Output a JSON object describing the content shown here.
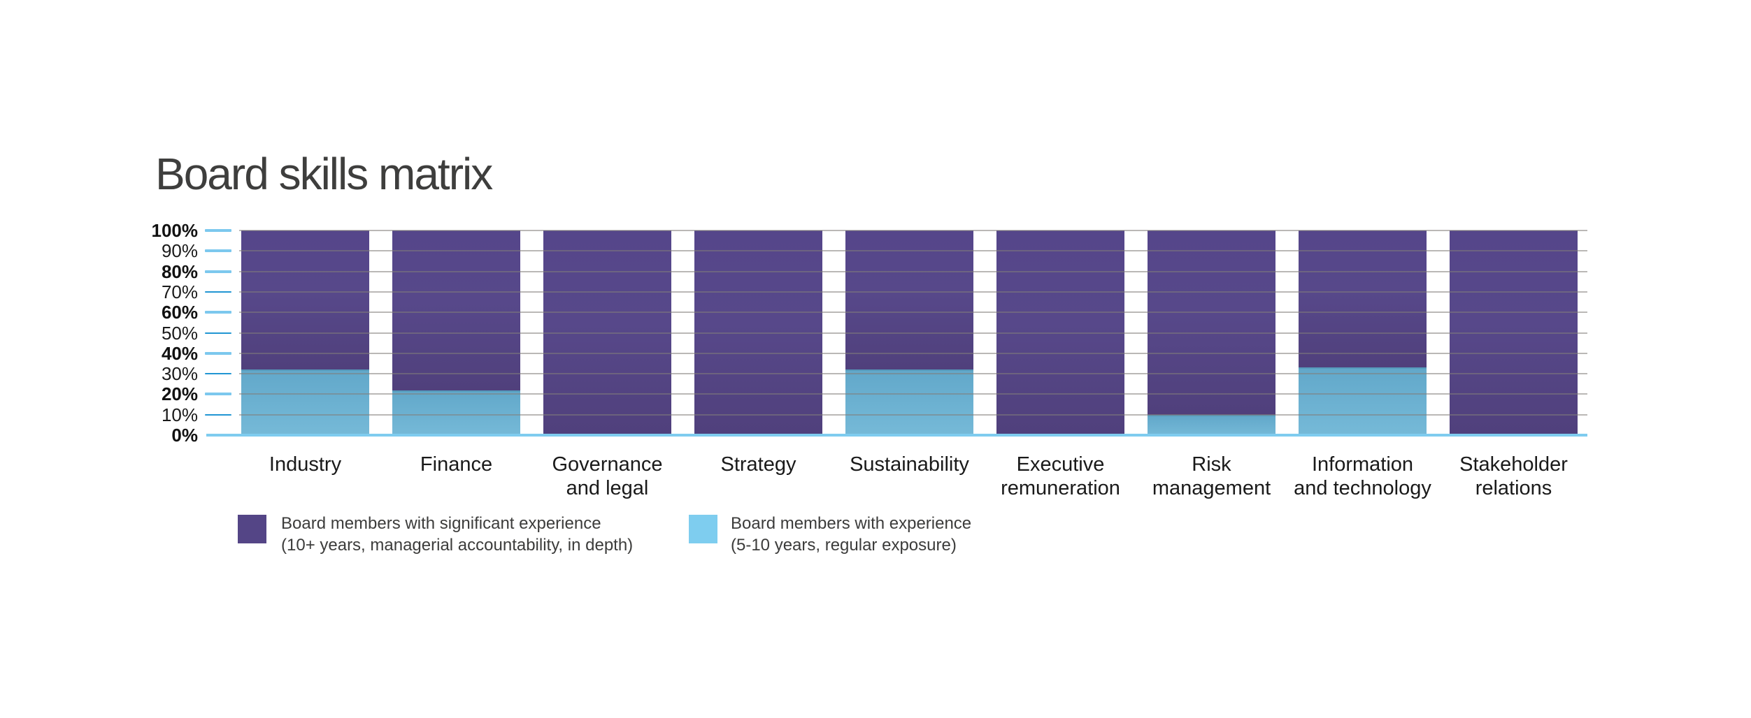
{
  "title": "Board skills matrix",
  "chart_data": {
    "type": "bar",
    "stacked": true,
    "title": "Board skills matrix",
    "categories": [
      "Industry",
      "Finance",
      "Governance and legal",
      "Strategy",
      "Sustainability",
      "Executive remuneration",
      "Risk management",
      "Information and technology",
      "Stakeholder relations"
    ],
    "category_label_lines": [
      [
        "Industry"
      ],
      [
        "Finance"
      ],
      [
        "Governance",
        "and legal"
      ],
      [
        "Strategy"
      ],
      [
        "Sustainability"
      ],
      [
        "Executive",
        "remuneration"
      ],
      [
        "Risk",
        "management"
      ],
      [
        "Information",
        "and technology"
      ],
      [
        "Stakeholder",
        "relations"
      ]
    ],
    "series": [
      {
        "name": "Board members with significant experience (10+ years, managerial accountability, in depth)",
        "swatch_color": "#544586",
        "bar_color_top": "#55468a",
        "bar_color_bottom": "#50407c",
        "values": [
          68,
          78,
          100,
          100,
          68,
          100,
          90,
          67,
          100
        ]
      },
      {
        "name": "Board members with experience (5-10 years, regular exposure)",
        "swatch_color": "#7ecdef",
        "bar_color_top": "#62a8ca",
        "bar_color_bottom": "#76bad8",
        "values": [
          32,
          22,
          0,
          0,
          32,
          0,
          10,
          33,
          0
        ]
      }
    ],
    "ylim": [
      0,
      100
    ],
    "ytick_values": [
      100,
      90,
      80,
      70,
      60,
      50,
      40,
      30,
      20,
      10,
      0
    ],
    "ytick_labels": [
      "100%",
      "90%",
      "80%",
      "70%",
      "60%",
      "50%",
      "40%",
      "30%",
      "20%",
      "10%",
      "0%"
    ],
    "bold_ytick_values": [
      100,
      80,
      60,
      40,
      20,
      0
    ],
    "dark_tick_values": [
      70,
      50,
      30,
      10
    ],
    "grid": true,
    "legend_position": "bottom"
  },
  "legend": {
    "items": [
      {
        "line1": "Board members with significant experience",
        "line2": "(10+ years, managerial accountability, in depth)",
        "color": "#544586"
      },
      {
        "line1": "Board members with experience",
        "line2": "(5-10 years, regular exposure)",
        "color": "#7ecdef"
      }
    ]
  },
  "colors": {
    "title_text": "#3e3e3d",
    "axis_text": "#1a1a1a",
    "legend_text": "#3c3c3b",
    "light_tick": "#7cc8ee",
    "dark_tick": "#2196d3",
    "baseline": "#7fccef",
    "gridline": "rgba(130,125,122,0.55)"
  }
}
